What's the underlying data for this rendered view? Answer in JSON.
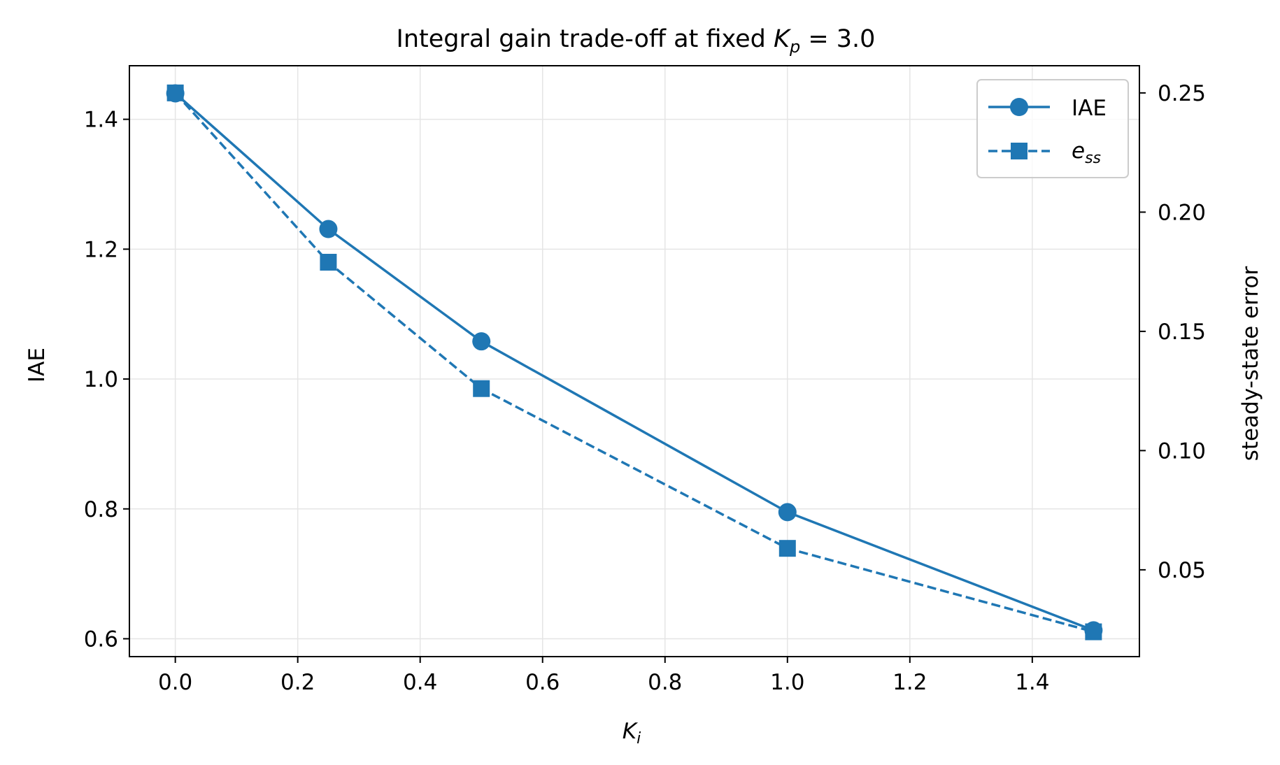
{
  "chart_data": {
    "type": "line",
    "title": {
      "prefix": "Integral gain trade-off at fixed ",
      "var": "K",
      "var_sub": "p",
      "suffix": " = 3.0"
    },
    "xlabel": {
      "var": "K",
      "sub": "i"
    },
    "ylabel_left": "IAE",
    "ylabel_right": "steady-state error",
    "xlim": [
      -0.075,
      1.575
    ],
    "ylim_left": [
      0.5725,
      1.4825
    ],
    "ylim_right": [
      0.0136,
      0.2614
    ],
    "x_ticks": [
      0.0,
      0.2,
      0.4,
      0.6,
      0.8,
      1.0,
      1.2,
      1.4
    ],
    "x_tick_labels": [
      "0.0",
      "0.2",
      "0.4",
      "0.6",
      "0.8",
      "1.0",
      "1.2",
      "1.4"
    ],
    "y_left_ticks": [
      0.6,
      0.8,
      1.0,
      1.2,
      1.4
    ],
    "y_left_tick_labels": [
      "0.6",
      "0.8",
      "1.0",
      "1.2",
      "1.4"
    ],
    "y_right_ticks": [
      0.05,
      0.1,
      0.15,
      0.2,
      0.25
    ],
    "y_right_tick_labels": [
      "0.05",
      "0.10",
      "0.15",
      "0.20",
      "0.25"
    ],
    "grid": true,
    "legend_position": "top-right",
    "series": [
      {
        "name": "IAE",
        "axis": "left",
        "marker": "circle",
        "linestyle": "solid",
        "x": [
          0.0,
          0.25,
          0.5,
          1.0,
          1.5
        ],
        "values": [
          1.44,
          1.231,
          1.058,
          0.795,
          0.613
        ]
      },
      {
        "name": "e",
        "name_sub": "ss",
        "axis": "right",
        "marker": "square",
        "linestyle": "dashed",
        "x": [
          0.0,
          0.25,
          0.5,
          1.0,
          1.5
        ],
        "values": [
          0.25,
          0.179,
          0.126,
          0.059,
          0.024
        ]
      }
    ],
    "colors": {
      "line": "#1f77b4",
      "grid": "#e5e5e5",
      "axis": "#000000"
    }
  }
}
